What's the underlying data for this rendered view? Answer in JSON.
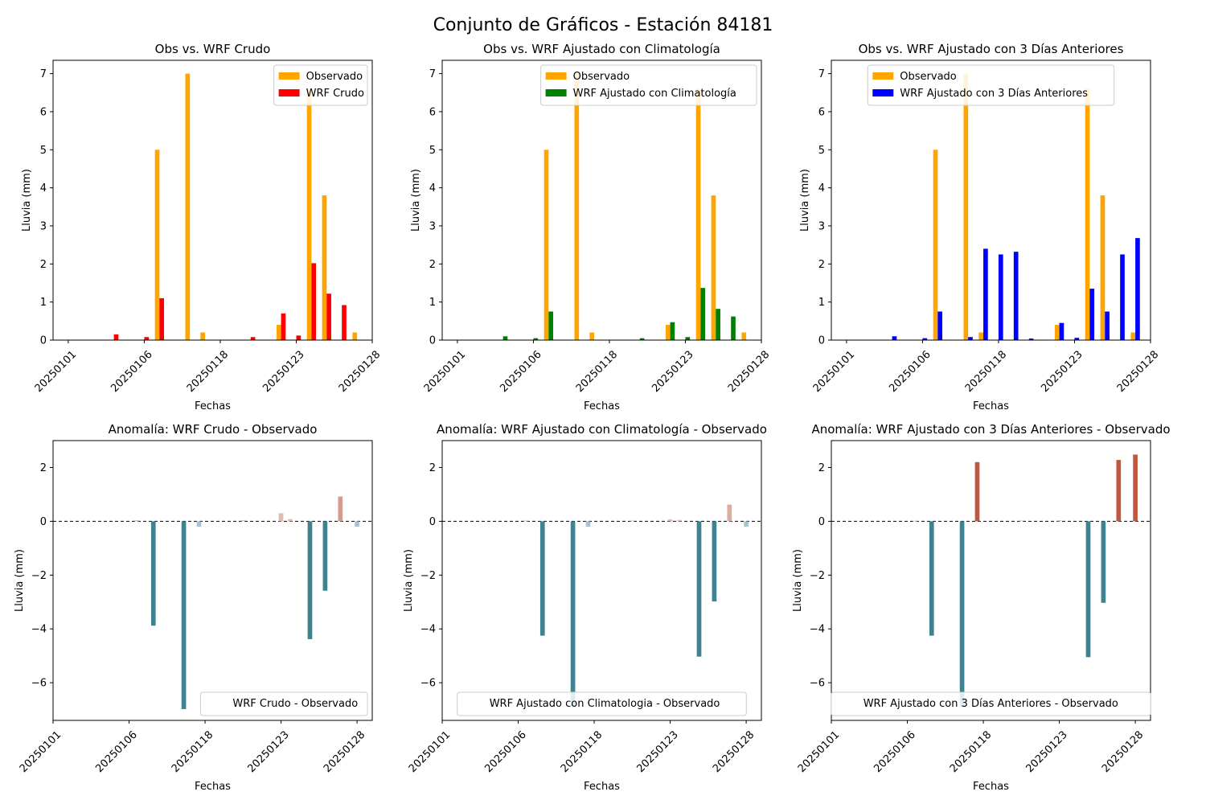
{
  "figure": {
    "title": "Conjunto de Gráficos - Estación 84181"
  },
  "colors": {
    "observed": "#FFA500",
    "raw": "#FF0000",
    "clim": "#008000",
    "prev3": "#0000FF",
    "anomaly_neg_strong": "#3F8290",
    "anomaly_pos_strong": "#C0573E"
  },
  "chart_data": [
    {
      "type": "bar",
      "title": "Obs vs. WRF Crudo",
      "xlabel": "Fechas",
      "ylabel": "Lluvia (mm)",
      "ylim": [
        0,
        7.35
      ],
      "yticks": [
        0,
        1,
        2,
        3,
        4,
        5,
        6,
        7
      ],
      "xlim": [
        -1,
        20
      ],
      "xticks": [
        {
          "pos": 0,
          "label": "20250101"
        },
        {
          "pos": 5,
          "label": "20250106"
        },
        {
          "pos": 10,
          "label": "20250118"
        },
        {
          "pos": 15,
          "label": "20250123"
        },
        {
          "pos": 20,
          "label": "20250128"
        }
      ],
      "legend_loc": "top-right",
      "series": [
        {
          "name": "Observado",
          "color": "#FFA500",
          "offset": -0.15,
          "values": [
            [
              6,
              5.0
            ],
            [
              8,
              7.0
            ],
            [
              9,
              0.2
            ],
            [
              14,
              0.4
            ],
            [
              16,
              6.6
            ],
            [
              17,
              3.8
            ],
            [
              19,
              0.2
            ]
          ]
        },
        {
          "name": "WRF Crudo",
          "color": "#FF0000",
          "offset": 0.15,
          "values": [
            [
              3,
              0.15
            ],
            [
              5,
              0.08
            ],
            [
              6,
              1.1
            ],
            [
              12,
              0.08
            ],
            [
              14,
              0.7
            ],
            [
              15,
              0.12
            ],
            [
              16,
              2.02
            ],
            [
              17,
              1.22
            ],
            [
              18,
              0.92
            ]
          ]
        }
      ]
    },
    {
      "type": "bar",
      "title": "Obs vs. WRF Ajustado con Climatología",
      "xlabel": "Fechas",
      "ylabel": "Lluvia (mm)",
      "ylim": [
        0,
        7.35
      ],
      "yticks": [
        0,
        1,
        2,
        3,
        4,
        5,
        6,
        7
      ],
      "xlim": [
        -1,
        20
      ],
      "xticks": [
        {
          "pos": 0,
          "label": "20250101"
        },
        {
          "pos": 5,
          "label": "20250106"
        },
        {
          "pos": 10,
          "label": "20250118"
        },
        {
          "pos": 15,
          "label": "20250123"
        },
        {
          "pos": 20,
          "label": "20250128"
        }
      ],
      "legend_loc": "top-right",
      "series": [
        {
          "name": "Observado",
          "color": "#FFA500",
          "offset": -0.15,
          "values": [
            [
              6,
              5.0
            ],
            [
              8,
              7.0
            ],
            [
              9,
              0.2
            ],
            [
              14,
              0.4
            ],
            [
              16,
              6.6
            ],
            [
              17,
              3.8
            ],
            [
              19,
              0.2
            ]
          ]
        },
        {
          "name": "WRF Ajustado con Climatología",
          "color": "#008000",
          "offset": 0.15,
          "values": [
            [
              3,
              0.1
            ],
            [
              5,
              0.05
            ],
            [
              6,
              0.75
            ],
            [
              12,
              0.05
            ],
            [
              14,
              0.47
            ],
            [
              15,
              0.08
            ],
            [
              16,
              1.37
            ],
            [
              17,
              0.82
            ],
            [
              18,
              0.62
            ]
          ]
        }
      ]
    },
    {
      "type": "bar",
      "title": "Obs vs. WRF Ajustado con 3 Días Anteriores",
      "xlabel": "Fechas",
      "ylabel": "Lluvia (mm)",
      "ylim": [
        0,
        7.35
      ],
      "yticks": [
        0,
        1,
        2,
        3,
        4,
        5,
        6,
        7
      ],
      "xlim": [
        -1,
        20
      ],
      "xticks": [
        {
          "pos": 0,
          "label": "20250101"
        },
        {
          "pos": 5,
          "label": "20250106"
        },
        {
          "pos": 10,
          "label": "20250118"
        },
        {
          "pos": 15,
          "label": "20250123"
        },
        {
          "pos": 20,
          "label": "20250128"
        }
      ],
      "legend_loc": "top-center",
      "series": [
        {
          "name": "Observado",
          "color": "#FFA500",
          "offset": -0.15,
          "values": [
            [
              6,
              5.0
            ],
            [
              8,
              7.0
            ],
            [
              9,
              0.2
            ],
            [
              14,
              0.4
            ],
            [
              16,
              6.6
            ],
            [
              17,
              3.8
            ],
            [
              19,
              0.2
            ]
          ]
        },
        {
          "name": "WRF Ajustado con 3 Días Anteriores",
          "color": "#0000FF",
          "offset": 0.15,
          "values": [
            [
              3,
              0.1
            ],
            [
              5,
              0.05
            ],
            [
              6,
              0.75
            ],
            [
              8,
              0.08
            ],
            [
              9,
              2.4
            ],
            [
              10,
              2.25
            ],
            [
              11,
              2.32
            ],
            [
              12,
              0.04
            ],
            [
              14,
              0.45
            ],
            [
              15,
              0.06
            ],
            [
              16,
              1.35
            ],
            [
              17,
              0.75
            ],
            [
              18,
              2.25
            ],
            [
              19,
              2.68
            ]
          ]
        }
      ]
    },
    {
      "type": "bar",
      "title": "Anomalía: WRF Crudo - Observado",
      "xlabel": "Fechas",
      "ylabel": "Lluvia (mm)",
      "ylim": [
        -7.4,
        3.0
      ],
      "yticks": [
        -6,
        -4,
        -2,
        0,
        2
      ],
      "xlim": [
        -1,
        20
      ],
      "xticks": [
        {
          "pos": -1,
          "label": "20250101"
        },
        {
          "pos": 4,
          "label": "20250106"
        },
        {
          "pos": 9,
          "label": "20250118"
        },
        {
          "pos": 14,
          "label": "20250123"
        },
        {
          "pos": 19,
          "label": "20250128"
        }
      ],
      "legend_loc": "bottom-right",
      "zero_line": true,
      "series": [
        {
          "name": "WRF Crudo - Observado",
          "offset": 0,
          "values": [
            [
              4.5,
              0.04
            ],
            [
              5.6,
              -3.88
            ],
            [
              7.6,
              -6.98
            ],
            [
              8.6,
              -0.2
            ],
            [
              11.5,
              0.04
            ],
            [
              14,
              0.3
            ],
            [
              14.6,
              0.08
            ],
            [
              15.9,
              -4.38
            ],
            [
              16.9,
              -2.58
            ],
            [
              17.9,
              0.92
            ],
            [
              19,
              -0.2
            ]
          ]
        }
      ]
    },
    {
      "type": "bar",
      "title": "Anomalía: WRF Ajustado con Climatología - Observado",
      "xlabel": "Fechas",
      "ylabel": "Lluvia (mm)",
      "ylim": [
        -7.4,
        3.0
      ],
      "yticks": [
        -6,
        -4,
        -2,
        0,
        2
      ],
      "xlim": [
        -1,
        20
      ],
      "xticks": [
        {
          "pos": -1,
          "label": "20250101"
        },
        {
          "pos": 4,
          "label": "20250106"
        },
        {
          "pos": 9,
          "label": "20250118"
        },
        {
          "pos": 14,
          "label": "20250123"
        },
        {
          "pos": 19,
          "label": "20250128"
        }
      ],
      "legend_loc": "bottom-center",
      "zero_line": true,
      "series": [
        {
          "name": "WRF Ajustado con Climatologia - Observado",
          "offset": 0,
          "values": [
            [
              4.5,
              0.03
            ],
            [
              5.6,
              -4.25
            ],
            [
              7.6,
              -6.9
            ],
            [
              8.6,
              -0.2
            ],
            [
              11.5,
              0.03
            ],
            [
              14,
              0.07
            ],
            [
              14.6,
              0.05
            ],
            [
              15.9,
              -5.03
            ],
            [
              16.9,
              -2.98
            ],
            [
              17.9,
              0.62
            ],
            [
              19,
              -0.2
            ]
          ]
        }
      ]
    },
    {
      "type": "bar",
      "title": "Anomalía: WRF Ajustado con 3 Días Anteriores - Observado",
      "xlabel": "Fechas",
      "ylabel": "Lluvia (mm)",
      "ylim": [
        -7.4,
        3.0
      ],
      "yticks": [
        -6,
        -4,
        -2,
        0,
        2
      ],
      "xlim": [
        -1,
        20
      ],
      "xticks": [
        {
          "pos": -1,
          "label": "20250101"
        },
        {
          "pos": 4,
          "label": "20250106"
        },
        {
          "pos": 9,
          "label": "20250118"
        },
        {
          "pos": 14,
          "label": "20250123"
        },
        {
          "pos": 19,
          "label": "20250128"
        }
      ],
      "legend_loc": "bottom-center",
      "zero_line": true,
      "series": [
        {
          "name": "WRF Ajustado con 3 Días Anteriores - Observado",
          "offset": 0,
          "values": [
            [
              4.5,
              0.02
            ],
            [
              5.6,
              -4.25
            ],
            [
              7.6,
              -6.9
            ],
            [
              8.6,
              2.2
            ],
            [
              11.5,
              0.03
            ],
            [
              14,
              0.04
            ],
            [
              15.9,
              -5.05
            ],
            [
              16.9,
              -3.03
            ],
            [
              17.9,
              2.28
            ],
            [
              19,
              2.48
            ]
          ]
        }
      ]
    }
  ]
}
